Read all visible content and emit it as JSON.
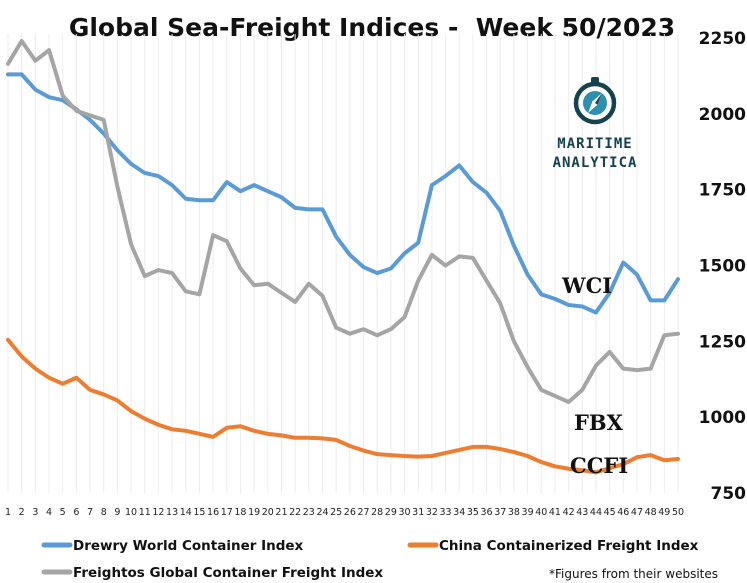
{
  "chart_data": {
    "type": "line",
    "title": "Global Sea-Freight Indices -  Week 50/2023",
    "x": [
      1,
      2,
      3,
      4,
      5,
      6,
      7,
      8,
      9,
      10,
      11,
      12,
      13,
      14,
      15,
      16,
      17,
      18,
      19,
      20,
      21,
      22,
      23,
      24,
      25,
      26,
      27,
      28,
      29,
      30,
      31,
      32,
      33,
      34,
      35,
      36,
      37,
      38,
      39,
      40,
      41,
      42,
      43,
      44,
      45,
      46,
      47,
      48,
      49,
      50
    ],
    "xlim": [
      1,
      50
    ],
    "ylim": [
      750,
      2250
    ],
    "yticks": [
      750,
      1000,
      1250,
      1500,
      1750,
      2000,
      2250
    ],
    "grid": "vertical",
    "series": [
      {
        "name": "Drewry World Container Index",
        "label": "WCI",
        "color": "#5b9bd5",
        "values": [
          2130,
          2130,
          2080,
          2055,
          2045,
          2015,
          1980,
          1935,
          1880,
          1835,
          1805,
          1795,
          1765,
          1720,
          1715,
          1715,
          1775,
          1745,
          1765,
          1745,
          1725,
          1690,
          1685,
          1685,
          1595,
          1535,
          1495,
          1475,
          1490,
          1540,
          1575,
          1765,
          1795,
          1830,
          1775,
          1740,
          1680,
          1565,
          1470,
          1405,
          1390,
          1370,
          1365,
          1345,
          1410,
          1510,
          1470,
          1385,
          1385,
          1455
        ]
      },
      {
        "name": "China Containerized Freight Index",
        "label": "CCFI",
        "color": "#ed7d31",
        "values": [
          1255,
          1200,
          1160,
          1130,
          1110,
          1130,
          1090,
          1075,
          1055,
          1020,
          995,
          975,
          960,
          955,
          945,
          935,
          965,
          970,
          955,
          945,
          940,
          932,
          932,
          930,
          925,
          905,
          890,
          878,
          875,
          872,
          870,
          872,
          882,
          892,
          902,
          902,
          895,
          885,
          872,
          852,
          838,
          830,
          825,
          818,
          832,
          845,
          868,
          875,
          858,
          862
        ]
      },
      {
        "name": "Freightos Global Container Freight Index",
        "label": "FBX",
        "color": "#a5a5a5",
        "values": [
          2165,
          2240,
          2175,
          2210,
          2060,
          2010,
          1995,
          1980,
          1760,
          1570,
          1465,
          1485,
          1475,
          1415,
          1405,
          1600,
          1580,
          1490,
          1435,
          1440,
          1410,
          1380,
          1440,
          1400,
          1295,
          1275,
          1290,
          1270,
          1290,
          1330,
          1450,
          1535,
          1500,
          1530,
          1525,
          1450,
          1375,
          1250,
          1165,
          1090,
          1070,
          1050,
          1090,
          1170,
          1215,
          1160,
          1155,
          1160,
          1270,
          1275
        ]
      }
    ],
    "legend": "bottom",
    "annotation": "*Figures from their websites"
  },
  "brand": {
    "line1": "MARITIME",
    "line2": "ANALYTICA"
  }
}
